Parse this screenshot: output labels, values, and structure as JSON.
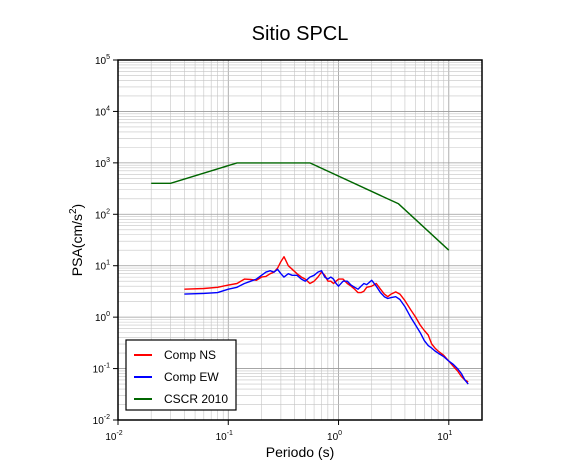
{
  "chart_data": {
    "type": "line",
    "title": "Sitio SPCL",
    "xlabel": "Periodo (s)",
    "ylabel_base": "PSA(cm/s",
    "ylabel_exp": "2",
    "ylabel_close": ")",
    "x_scale": "log",
    "y_scale": "log",
    "xlim": [
      0.01,
      20
    ],
    "ylim": [
      0.01,
      100000
    ],
    "grid": true,
    "legend_position": "bottom-left",
    "x_ticks": [
      {
        "value": 0.01,
        "base": "10",
        "exp": "-2"
      },
      {
        "value": 0.1,
        "base": "10",
        "exp": "-1"
      },
      {
        "value": 1,
        "base": "10",
        "exp": "0"
      },
      {
        "value": 10,
        "base": "10",
        "exp": "1"
      }
    ],
    "y_ticks": [
      {
        "value": 0.01,
        "base": "10",
        "exp": "-2"
      },
      {
        "value": 0.1,
        "base": "10",
        "exp": "-1"
      },
      {
        "value": 1,
        "base": "10",
        "exp": "0"
      },
      {
        "value": 10,
        "base": "10",
        "exp": "1"
      },
      {
        "value": 100,
        "base": "10",
        "exp": "2"
      },
      {
        "value": 1000,
        "base": "10",
        "exp": "3"
      },
      {
        "value": 10000,
        "base": "10",
        "exp": "4"
      },
      {
        "value": 100000,
        "base": "10",
        "exp": "5"
      }
    ],
    "series": [
      {
        "name": "Comp NS",
        "color": "#ff0000",
        "x": [
          0.04,
          0.06,
          0.08,
          0.1,
          0.12,
          0.14,
          0.16,
          0.18,
          0.2,
          0.22,
          0.24,
          0.26,
          0.28,
          0.3,
          0.32,
          0.35,
          0.38,
          0.42,
          0.46,
          0.5,
          0.55,
          0.6,
          0.65,
          0.7,
          0.75,
          0.8,
          0.85,
          0.9,
          0.95,
          1.0,
          1.1,
          1.2,
          1.3,
          1.4,
          1.5,
          1.6,
          1.7,
          1.8,
          2.0,
          2.2,
          2.4,
          2.6,
          2.8,
          3.0,
          3.3,
          3.6,
          4.0,
          4.5,
          5.0,
          5.5,
          6.0,
          6.5,
          7.0,
          7.5,
          8.0,
          9.0,
          10,
          11,
          12,
          13,
          14,
          15
        ],
        "y": [
          3.5,
          3.6,
          3.8,
          4.2,
          4.5,
          5.5,
          5.4,
          5.2,
          6.0,
          6.2,
          7.0,
          7.5,
          9.0,
          12.0,
          15.0,
          10.0,
          8.5,
          7.0,
          6.0,
          5.5,
          4.5,
          5.0,
          6.0,
          7.5,
          6.5,
          5.0,
          5.0,
          4.5,
          5.0,
          5.5,
          5.5,
          4.5,
          4.0,
          3.5,
          3.0,
          3.0,
          3.2,
          3.8,
          4.0,
          4.5,
          3.5,
          2.8,
          2.5,
          2.8,
          3.1,
          2.8,
          2.1,
          1.4,
          1.0,
          0.7,
          0.55,
          0.45,
          0.3,
          0.25,
          0.22,
          0.18,
          0.14,
          0.11,
          0.09,
          0.07,
          0.06,
          0.055
        ]
      },
      {
        "name": "Comp EW",
        "color": "#0000ff",
        "x": [
          0.04,
          0.06,
          0.08,
          0.1,
          0.12,
          0.14,
          0.16,
          0.18,
          0.2,
          0.22,
          0.24,
          0.26,
          0.28,
          0.3,
          0.32,
          0.35,
          0.38,
          0.42,
          0.46,
          0.5,
          0.55,
          0.6,
          0.65,
          0.7,
          0.75,
          0.8,
          0.85,
          0.9,
          0.95,
          1.0,
          1.1,
          1.2,
          1.3,
          1.4,
          1.5,
          1.6,
          1.7,
          1.8,
          2.0,
          2.2,
          2.4,
          2.6,
          2.8,
          3.0,
          3.3,
          3.6,
          4.0,
          4.5,
          5.0,
          5.5,
          6.0,
          6.5,
          7.0,
          7.5,
          8.0,
          9.0,
          10,
          11,
          12,
          13,
          14,
          15
        ],
        "y": [
          2.8,
          2.9,
          3.0,
          3.5,
          3.8,
          4.5,
          5.0,
          5.5,
          6.5,
          7.5,
          8.0,
          7.5,
          8.5,
          7.0,
          6.0,
          7.0,
          6.5,
          6.5,
          5.5,
          5.0,
          6.0,
          6.5,
          7.5,
          8.0,
          6.0,
          5.5,
          6.0,
          5.5,
          4.5,
          4.0,
          5.0,
          5.0,
          4.2,
          3.8,
          3.5,
          4.0,
          4.5,
          4.3,
          5.2,
          4.0,
          3.0,
          2.5,
          2.3,
          2.4,
          2.5,
          2.2,
          1.6,
          1.0,
          0.7,
          0.5,
          0.35,
          0.28,
          0.25,
          0.22,
          0.2,
          0.17,
          0.14,
          0.12,
          0.1,
          0.08,
          0.06,
          0.05
        ]
      },
      {
        "name": "CSCR 2010",
        "color": "#006600",
        "x": [
          0.02,
          0.03,
          0.12,
          0.55,
          3.5,
          10
        ],
        "y": [
          400,
          400,
          1000,
          1000,
          160,
          20
        ]
      }
    ]
  }
}
